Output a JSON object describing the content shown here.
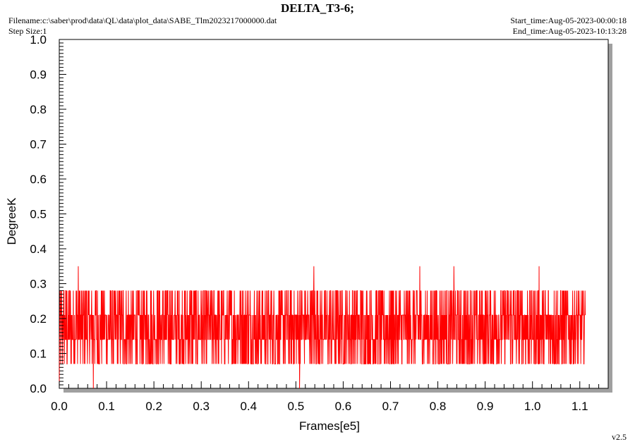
{
  "header": {
    "title": "DELTA_T3-6;",
    "filename": "Filename:c:\\saber\\prod\\data\\QL\\data\\plot_data\\SABE_Tlm2023217000000.dat",
    "step_size": "Step Size:1",
    "start_time": "Start_time:Aug-05-2023-00:00:18",
    "end_time": "End_time:Aug-05-2023-10:13:28"
  },
  "footer": {
    "version": "v2.5"
  },
  "colors": {
    "series": "#ff0000",
    "shadow": "#a0a0a0",
    "axis": "#000000"
  },
  "chart_data": {
    "type": "line",
    "xlabel": "Frames[e5]",
    "ylabel": "DegreeK",
    "xlim": [
      0.0,
      1.16
    ],
    "ylim": [
      0.0,
      1.0
    ],
    "x_ticks": [
      "0.0",
      "0.1",
      "0.2",
      "0.3",
      "0.4",
      "0.5",
      "0.6",
      "0.7",
      "0.8",
      "0.9",
      "1.0",
      "1.1"
    ],
    "y_ticks": [
      "0.0",
      "0.1",
      "0.2",
      "0.3",
      "0.4",
      "0.5",
      "0.6",
      "0.7",
      "0.8",
      "0.9",
      "1.0"
    ],
    "grid": false,
    "series": [
      {
        "levels": [
          0.07,
          0.14,
          0.21,
          0.28,
          0.35
        ],
        "x_start": 0.0,
        "x_end": 1.112,
        "typical_range": [
          0.07,
          0.28
        ],
        "spikes": [
          {
            "x": 0.0,
            "y": 0.0
          },
          {
            "x": 0.04,
            "y": 0.35
          },
          {
            "x": 0.072,
            "y": 0.0
          },
          {
            "x": 0.508,
            "y": 0.0
          },
          {
            "x": 0.538,
            "y": 0.35
          },
          {
            "x": 0.762,
            "y": 0.35
          },
          {
            "x": 0.834,
            "y": 0.35
          },
          {
            "x": 1.014,
            "y": 0.35
          }
        ]
      }
    ]
  }
}
